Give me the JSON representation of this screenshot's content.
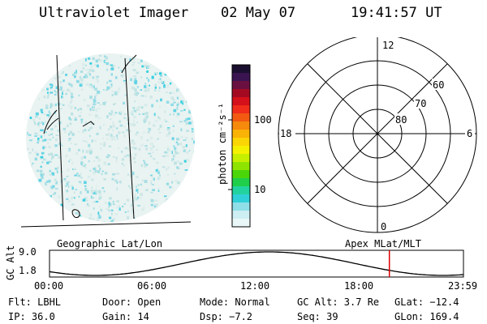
{
  "header": {
    "instrument": "Ultraviolet Imager",
    "date": "02 May 07",
    "time": "19:41:57 UT"
  },
  "colorbar": {
    "unit_label": "photon cm⁻²s⁻¹",
    "tick_labels": [
      "100",
      "10"
    ],
    "colors": [
      "#1a0f2e",
      "#3a1450",
      "#6a1040",
      "#a30a22",
      "#d4101a",
      "#ef2d1a",
      "#f25a12",
      "#f58a0c",
      "#f9b206",
      "#fbd605",
      "#f4f100",
      "#c6ef00",
      "#8ee400",
      "#4bd60a",
      "#1fcf4a",
      "#22d3a0",
      "#30d0d8",
      "#8fdfe8",
      "#cdeef2",
      "#eaf7f8"
    ]
  },
  "polar_plot": {
    "hour_labels": [
      "12",
      "18",
      "6",
      "0"
    ],
    "lat_labels": [
      "60",
      "70",
      "80"
    ]
  },
  "timeline": {
    "map_label_left": "Geographic Lat/Lon",
    "map_label_right": "Apex MLat/MLT",
    "axis_title": "GC Alt",
    "y_max": "9.0",
    "y_min": "1.8",
    "time_ticks": [
      "00:00",
      "06:00",
      "12:00",
      "18:00",
      "23:59"
    ],
    "current_time_fraction": 0.821,
    "marker_color": "#dd0000"
  },
  "status": {
    "flt": "Flt: LBHL",
    "door": "Door: Open",
    "mode": "Mode: Normal",
    "gc_alt": "GC Alt: 3.7 Re",
    "glat": "GLat: −12.4",
    "ip": "IP: 36.0",
    "gain": "Gain: 14",
    "dsp": "Dsp:   −7.2",
    "seq": "Seq: 39",
    "glon": "GLon: 169.4"
  }
}
